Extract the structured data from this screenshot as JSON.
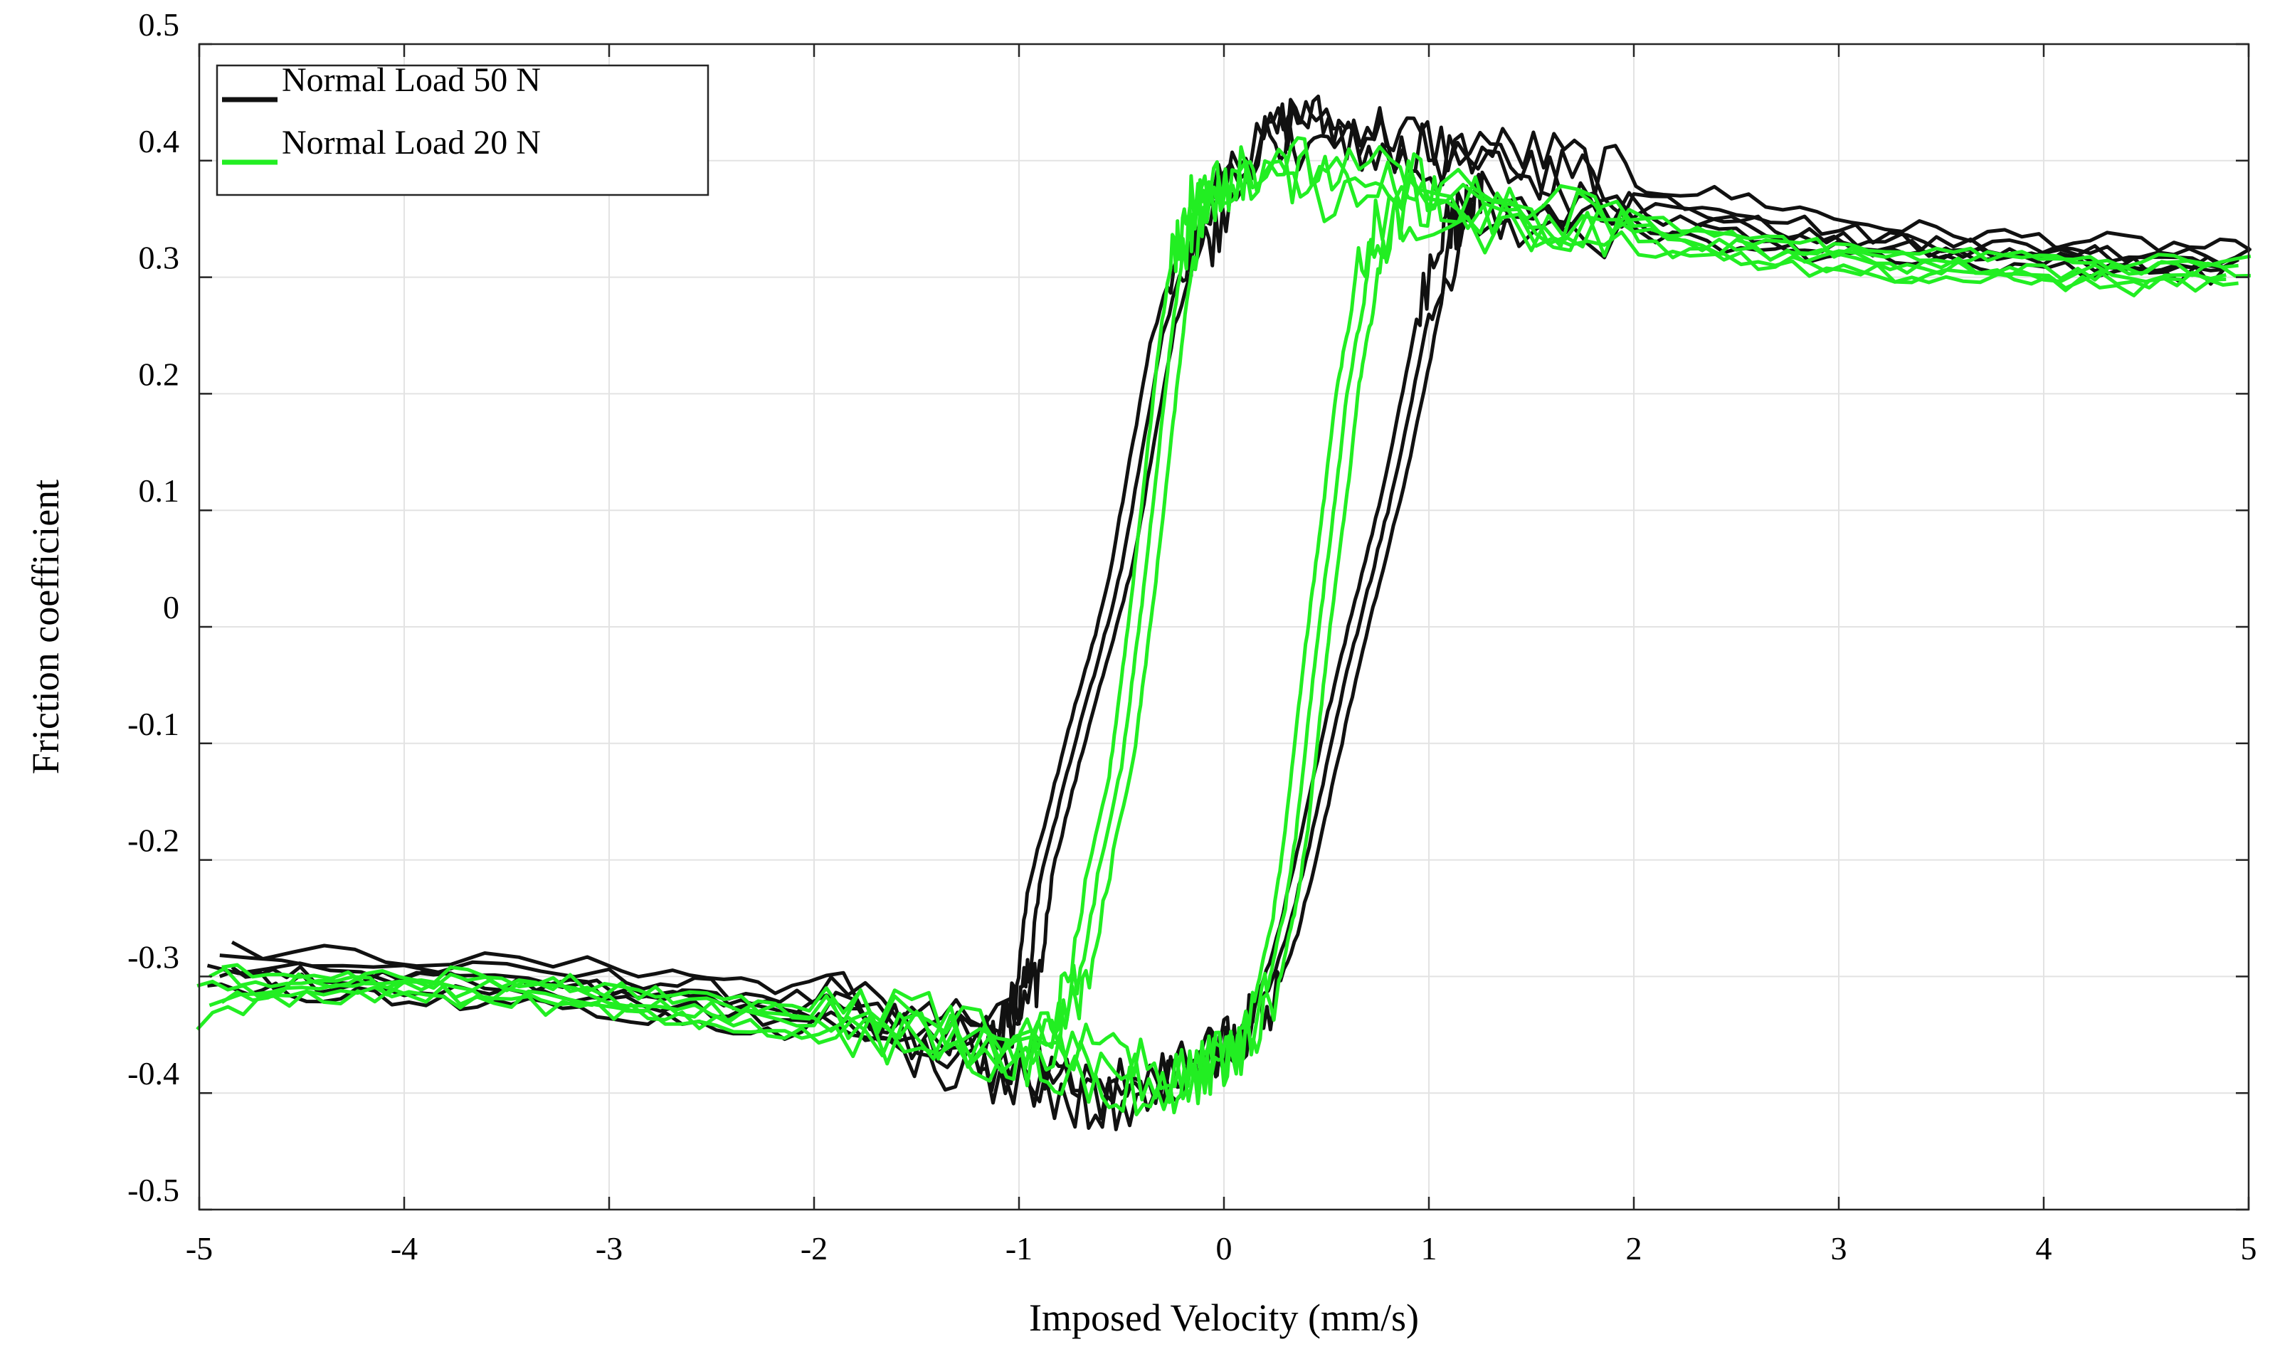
{
  "chart_data": {
    "type": "line",
    "title": "",
    "xlabel": "Imposed Velocity (mm/s)",
    "ylabel": "Friction coefficient",
    "xlim": [
      -5,
      5
    ],
    "ylim": [
      -0.5,
      0.5
    ],
    "grid": true,
    "legend_position": "top-left",
    "x_ticks": [
      -5,
      -4,
      -3,
      -2,
      -1,
      0,
      1,
      2,
      3,
      4,
      5
    ],
    "x_tick_labels": [
      "-5",
      "-4",
      "-3",
      "-2",
      "-1",
      "0",
      "1",
      "2",
      "3",
      "4",
      "5"
    ],
    "y_ticks": [
      -0.5,
      -0.4,
      -0.3,
      -0.2,
      -0.1,
      0,
      0.1,
      0.2,
      0.3,
      0.4,
      0.5
    ],
    "y_tick_labels": [
      "-0.5",
      "-0.4",
      "-0.3",
      "-0.2",
      "-0.1",
      "0",
      "0.1",
      "0.2",
      "0.3",
      "0.4",
      "0.5"
    ],
    "series": [
      {
        "name": "Normal Load 50 N",
        "color": "#111111",
        "loops": [
          {
            "x": [
              -4.9,
              -4.0,
              -3.0,
              -2.5,
              -2.0,
              -1.5,
              -1.1,
              -1.0,
              -0.95,
              -0.9,
              -0.8,
              -0.7,
              -0.6,
              -0.5,
              -0.4,
              -0.3,
              -0.2,
              -0.1,
              0.0,
              0.2,
              0.35,
              0.5,
              0.7,
              0.9,
              1.1,
              1.4,
              1.7,
              2.0,
              2.5,
              3.0,
              3.5,
              4.0,
              4.5,
              4.95
            ],
            "y": [
              -0.285,
              -0.292,
              -0.3,
              -0.31,
              -0.32,
              -0.34,
              -0.35,
              -0.33,
              -0.3,
              -0.22,
              -0.15,
              -0.08,
              -0.02,
              0.05,
              0.15,
              0.25,
              0.31,
              0.33,
              0.38,
              0.42,
              0.43,
              0.42,
              0.42,
              0.41,
              0.4,
              0.4,
              0.39,
              0.37,
              0.36,
              0.34,
              0.33,
              0.325,
              0.32,
              0.315
            ]
          },
          {
            "x": [
              4.95,
              4.5,
              4.0,
              3.5,
              3.0,
              2.5,
              2.0,
              1.5,
              1.2,
              1.15,
              1.1,
              1.0,
              0.9,
              0.8,
              0.7,
              0.6,
              0.5,
              0.4,
              0.3,
              0.2,
              0.1,
              0.0,
              -0.1,
              -0.2,
              -0.4,
              -0.6,
              -0.8,
              -1.0,
              -1.2,
              -1.5,
              -2.0,
              -2.5,
              -3.0,
              -3.5,
              -4.0,
              -4.5,
              -4.9
            ],
            "y": [
              0.31,
              0.31,
              0.315,
              0.32,
              0.325,
              0.335,
              0.345,
              0.355,
              0.36,
              0.35,
              0.33,
              0.27,
              0.18,
              0.1,
              0.03,
              -0.04,
              -0.12,
              -0.2,
              -0.27,
              -0.32,
              -0.35,
              -0.36,
              -0.37,
              -0.38,
              -0.4,
              -0.4,
              -0.39,
              -0.38,
              -0.37,
              -0.36,
              -0.34,
              -0.33,
              -0.32,
              -0.315,
              -0.31,
              -0.305,
              -0.3
            ]
          }
        ]
      },
      {
        "name": "Normal Load 20 N",
        "color": "#22ee22",
        "loops": [
          {
            "x": [
              -4.95,
              -4.5,
              -4.0,
              -3.5,
              -3.0,
              -2.5,
              -2.0,
              -1.5,
              -1.0,
              -0.8,
              -0.7,
              -0.6,
              -0.5,
              -0.45,
              -0.4,
              -0.35,
              -0.3,
              -0.25,
              -0.2,
              -0.15,
              -0.1,
              0.0,
              0.1,
              0.3,
              0.5,
              0.8,
              1.0,
              1.5,
              2.0,
              2.5,
              3.0,
              3.5,
              4.0,
              4.5,
              4.95
            ],
            "y": [
              -0.33,
              -0.31,
              -0.305,
              -0.31,
              -0.315,
              -0.33,
              -0.34,
              -0.345,
              -0.36,
              -0.34,
              -0.3,
              -0.2,
              -0.12,
              -0.05,
              0.02,
              0.1,
              0.18,
              0.26,
              0.32,
              0.35,
              0.37,
              0.38,
              0.39,
              0.39,
              0.38,
              0.38,
              0.37,
              0.35,
              0.34,
              0.325,
              0.315,
              0.31,
              0.305,
              0.305,
              0.31
            ]
          },
          {
            "x": [
              4.95,
              4.5,
              4.0,
              3.5,
              3.0,
              2.5,
              2.0,
              1.5,
              1.0,
              0.8,
              0.7,
              0.65,
              0.6,
              0.55,
              0.5,
              0.45,
              0.4,
              0.35,
              0.3,
              0.25,
              0.2,
              0.1,
              0.0,
              -0.1,
              -0.2,
              -0.4,
              -0.6,
              -0.8,
              -1.0,
              -1.5,
              -2.0,
              -2.5,
              -3.0,
              -3.5,
              -4.0,
              -4.5,
              -4.95
            ],
            "y": [
              0.3,
              0.3,
              0.305,
              0.31,
              0.315,
              0.325,
              0.335,
              0.345,
              0.36,
              0.35,
              0.3,
              0.25,
              0.2,
              0.12,
              0.05,
              -0.02,
              -0.1,
              -0.18,
              -0.24,
              -0.28,
              -0.32,
              -0.36,
              -0.37,
              -0.38,
              -0.39,
              -0.39,
              -0.38,
              -0.37,
              -0.36,
              -0.35,
              -0.34,
              -0.33,
              -0.32,
              -0.315,
              -0.31,
              -0.305,
              -0.3
            ]
          }
        ]
      }
    ],
    "legend": [
      {
        "label": "Normal Load 50 N",
        "color": "#111111"
      },
      {
        "label": "Normal Load 20 N",
        "color": "#22ee22"
      }
    ]
  }
}
